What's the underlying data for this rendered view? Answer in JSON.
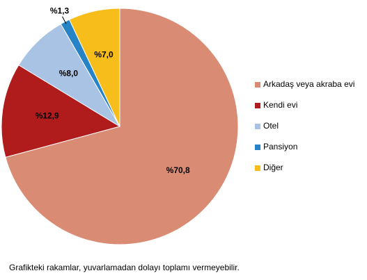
{
  "chart_data": {
    "type": "pie",
    "categories": [
      "Arkadaş veya akraba evi",
      "Kendi evi",
      "Otel",
      "Pansiyon",
      "Diğer"
    ],
    "values": [
      70.8,
      12.9,
      8.0,
      1.3,
      7.0
    ],
    "value_labels": [
      "%70,8",
      "%12,9",
      "%8,0",
      "%1,3",
      "%7,0"
    ],
    "colors": [
      "#d98b74",
      "#b01c1c",
      "#a9c3e4",
      "#2683c6",
      "#f7bd1a"
    ],
    "legend": "right",
    "note": "Grafikteki rakamlar, yuvarlamadan dolayı toplamı vermeyebilir."
  }
}
